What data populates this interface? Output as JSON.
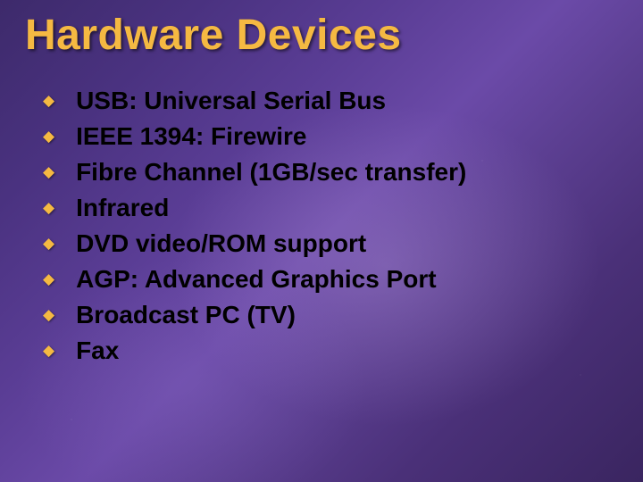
{
  "slide": {
    "title": "Hardware Devices",
    "title_color": "#f5b942",
    "title_fontsize": 48,
    "bullet_icon_glyph": "◆",
    "bullet_icon_color": "#f5b942",
    "bullet_text_color": "#000000",
    "bullet_fontsize": 28,
    "background_colors": [
      "#3d2a6b",
      "#4a3280",
      "#5a3d95",
      "#6b4aa8",
      "#5c3f92",
      "#4a3078",
      "#3a2560"
    ],
    "items": [
      "USB:  Universal Serial Bus",
      "IEEE 1394: Firewire",
      "Fibre Channel (1GB/sec transfer)",
      "Infrared",
      "DVD video/ROM support",
      "AGP:  Advanced Graphics Port",
      "Broadcast PC (TV)",
      "Fax"
    ]
  }
}
